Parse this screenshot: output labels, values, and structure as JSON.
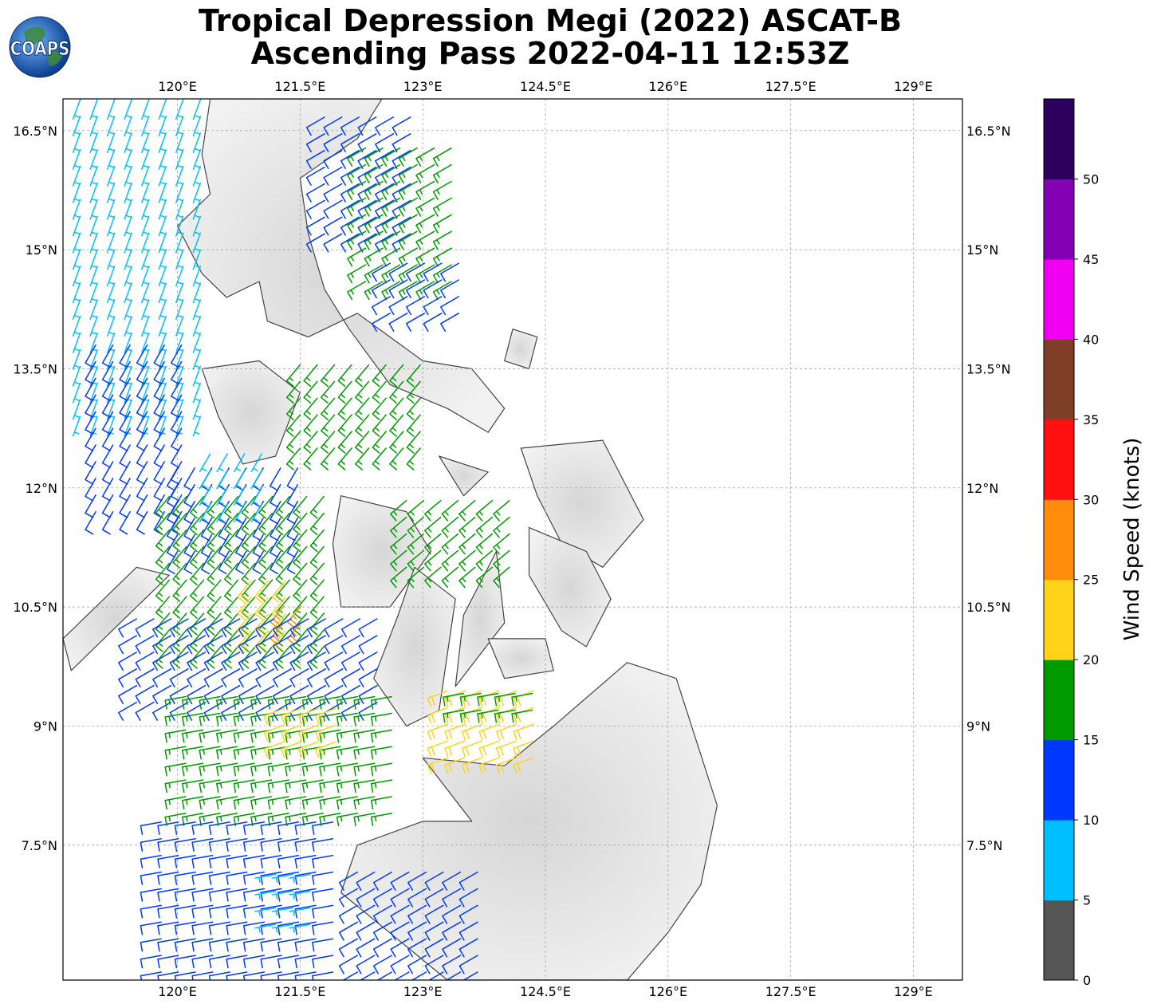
{
  "title": {
    "line1": "Tropical Depression Megi (2022) ASCAT-B",
    "line2": "Ascending Pass 2022-04-11 12:53Z"
  },
  "logo": {
    "text": "COAPS",
    "icon": "globe-icon"
  },
  "map": {
    "lon_range": [
      118.6,
      129.6
    ],
    "lat_range": [
      5.8,
      16.9
    ],
    "lon_ticks": [
      {
        "value": 120.0,
        "label": "120°E"
      },
      {
        "value": 121.5,
        "label": "121.5°E"
      },
      {
        "value": 123.0,
        "label": "123°E"
      },
      {
        "value": 124.5,
        "label": "124.5°E"
      },
      {
        "value": 126.0,
        "label": "126°E"
      },
      {
        "value": 127.5,
        "label": "127.5°E"
      },
      {
        "value": 129.0,
        "label": "129°E"
      }
    ],
    "lat_ticks": [
      {
        "value": 16.5,
        "label": "16.5°N"
      },
      {
        "value": 15.0,
        "label": "15°N"
      },
      {
        "value": 13.5,
        "label": "13.5°N"
      },
      {
        "value": 12.0,
        "label": "12°N"
      },
      {
        "value": 10.5,
        "label": "10.5°N"
      },
      {
        "value": 9.0,
        "label": "9°N"
      },
      {
        "value": 7.5,
        "label": "7.5°N"
      }
    ],
    "gridlines": true,
    "background": "grayscale topography over land"
  },
  "colorbar": {
    "label": "Wind Speed (knots)",
    "bins": [
      {
        "min": 0,
        "max": 5,
        "color": "#555555"
      },
      {
        "min": 5,
        "max": 10,
        "color": "#00bfff"
      },
      {
        "min": 10,
        "max": 15,
        "color": "#0038ff"
      },
      {
        "min": 15,
        "max": 20,
        "color": "#009a00"
      },
      {
        "min": 20,
        "max": 25,
        "color": "#ffd31a"
      },
      {
        "min": 25,
        "max": 30,
        "color": "#ff8c0a"
      },
      {
        "min": 30,
        "max": 35,
        "color": "#ff1010"
      },
      {
        "min": 35,
        "max": 40,
        "color": "#7e3e28"
      },
      {
        "min": 40,
        "max": 45,
        "color": "#f000f0"
      },
      {
        "min": 45,
        "max": 50,
        "color": "#8400b4"
      },
      {
        "min": 50,
        "max": 55,
        "color": "#2e005e"
      }
    ],
    "ticks": [
      "0",
      "5",
      "10",
      "15",
      "20",
      "25",
      "30",
      "35",
      "40",
      "45",
      "50"
    ]
  },
  "wind_regions": [
    {
      "lon": [
        118.6,
        120.4
      ],
      "lat": [
        12.9,
        16.9
      ],
      "speed": 8,
      "dir": 20
    },
    {
      "lon": [
        119.0,
        120.2
      ],
      "lat": [
        11.7,
        14.0
      ],
      "speed": 12,
      "dir": 30
    },
    {
      "lon": [
        121.8,
        123.0
      ],
      "lat": [
        15.2,
        16.7
      ],
      "speed": 12,
      "dir": 60
    },
    {
      "lon": [
        122.3,
        123.5
      ],
      "lat": [
        14.6,
        16.4
      ],
      "speed": 17,
      "dir": 60
    },
    {
      "lon": [
        122.6,
        123.6
      ],
      "lat": [
        14.2,
        15.0
      ],
      "speed": 12,
      "dir": 60
    },
    {
      "lon": [
        121.5,
        123.0
      ],
      "lat": [
        12.5,
        13.7
      ],
      "speed": 17,
      "dir": 40
    },
    {
      "lon": [
        120.0,
        121.5
      ],
      "lat": [
        11.2,
        12.4
      ],
      "speed": 12,
      "dir": 30
    },
    {
      "lon": [
        120.4,
        121.2
      ],
      "lat": [
        11.8,
        12.6
      ],
      "speed": 8,
      "dir": 30
    },
    {
      "lon": [
        119.9,
        121.8
      ],
      "lat": [
        10.0,
        11.9
      ],
      "speed": 17,
      "dir": 40
    },
    {
      "lon": [
        120.9,
        121.5
      ],
      "lat": [
        10.2,
        11.0
      ],
      "speed": 22,
      "dir": 40
    },
    {
      "lon": [
        121.3,
        121.6
      ],
      "lat": [
        10.3,
        10.6
      ],
      "speed": 27,
      "dir": 40
    },
    {
      "lon": [
        122.8,
        124.1
      ],
      "lat": [
        11.0,
        12.0
      ],
      "speed": 17,
      "dir": 50
    },
    {
      "lon": [
        119.5,
        122.6
      ],
      "lat": [
        9.3,
        10.4
      ],
      "speed": 12,
      "dir": 60
    },
    {
      "lon": [
        120.1,
        122.7
      ],
      "lat": [
        7.9,
        9.5
      ],
      "speed": 17,
      "dir": 80
    },
    {
      "lon": [
        121.3,
        122.1
      ],
      "lat": [
        8.8,
        9.4
      ],
      "speed": 22,
      "dir": 70
    },
    {
      "lon": [
        123.3,
        124.5
      ],
      "lat": [
        8.6,
        9.5
      ],
      "speed": 22,
      "dir": 70
    },
    {
      "lon": [
        123.5,
        124.5
      ],
      "lat": [
        9.2,
        9.5
      ],
      "speed": 17,
      "dir": 80
    },
    {
      "lon": [
        119.8,
        122.0
      ],
      "lat": [
        5.9,
        7.9
      ],
      "speed": 12,
      "dir": 80
    },
    {
      "lon": [
        122.2,
        123.8
      ],
      "lat": [
        5.9,
        7.3
      ],
      "speed": 12,
      "dir": 60
    },
    {
      "lon": [
        121.2,
        121.8
      ],
      "lat": [
        6.5,
        7.2
      ],
      "speed": 8,
      "dir": 80
    }
  ],
  "land_shapes": [
    {
      "name": "luzon",
      "points": [
        [
          120.4,
          16.9
        ],
        [
          120.3,
          16.2
        ],
        [
          120.4,
          15.7
        ],
        [
          120.0,
          15.3
        ],
        [
          120.3,
          14.7
        ],
        [
          120.6,
          14.4
        ],
        [
          121.0,
          14.6
        ],
        [
          121.1,
          14.1
        ],
        [
          121.6,
          13.9
        ],
        [
          122.2,
          14.2
        ],
        [
          122.6,
          13.9
        ],
        [
          123.0,
          13.6
        ],
        [
          123.6,
          13.5
        ],
        [
          124.0,
          13.0
        ],
        [
          123.8,
          12.7
        ],
        [
          123.3,
          13.0
        ],
        [
          122.6,
          13.3
        ],
        [
          122.1,
          14.0
        ],
        [
          121.8,
          14.5
        ],
        [
          121.6,
          15.2
        ],
        [
          121.5,
          15.9
        ],
        [
          122.2,
          16.4
        ],
        [
          122.5,
          16.9
        ]
      ]
    },
    {
      "name": "mindoro",
      "points": [
        [
          120.3,
          13.5
        ],
        [
          121.0,
          13.6
        ],
        [
          121.5,
          13.2
        ],
        [
          121.2,
          12.4
        ],
        [
          120.8,
          12.3
        ],
        [
          120.5,
          12.9
        ]
      ]
    },
    {
      "name": "palawan",
      "points": [
        [
          119.5,
          11.0
        ],
        [
          119.9,
          10.9
        ],
        [
          118.7,
          9.7
        ],
        [
          118.6,
          10.1
        ]
      ]
    },
    {
      "name": "panay",
      "points": [
        [
          122.0,
          11.9
        ],
        [
          122.8,
          11.7
        ],
        [
          123.1,
          11.2
        ],
        [
          122.6,
          10.5
        ],
        [
          122.0,
          10.5
        ],
        [
          121.9,
          11.3
        ]
      ]
    },
    {
      "name": "negros",
      "points": [
        [
          122.9,
          11.0
        ],
        [
          123.4,
          10.6
        ],
        [
          123.2,
          9.2
        ],
        [
          122.8,
          9.0
        ],
        [
          122.4,
          9.6
        ],
        [
          122.7,
          10.4
        ]
      ]
    },
    {
      "name": "cebu",
      "points": [
        [
          123.9,
          11.2
        ],
        [
          124.0,
          10.3
        ],
        [
          123.4,
          9.5
        ],
        [
          123.5,
          10.4
        ]
      ]
    },
    {
      "name": "bohol",
      "points": [
        [
          123.8,
          10.1
        ],
        [
          124.5,
          10.1
        ],
        [
          124.6,
          9.7
        ],
        [
          124.0,
          9.6
        ]
      ]
    },
    {
      "name": "samar",
      "points": [
        [
          124.2,
          12.5
        ],
        [
          125.2,
          12.6
        ],
        [
          125.7,
          11.6
        ],
        [
          125.2,
          11.0
        ],
        [
          124.7,
          11.3
        ],
        [
          124.4,
          11.9
        ]
      ]
    },
    {
      "name": "leyte",
      "points": [
        [
          124.3,
          11.5
        ],
        [
          125.0,
          11.2
        ],
        [
          125.3,
          10.6
        ],
        [
          125.0,
          10.0
        ],
        [
          124.7,
          10.2
        ],
        [
          124.3,
          10.9
        ]
      ]
    },
    {
      "name": "mindanao",
      "points": [
        [
          123.0,
          8.6
        ],
        [
          124.0,
          8.5
        ],
        [
          124.6,
          9.0
        ],
        [
          125.5,
          9.8
        ],
        [
          126.1,
          9.6
        ],
        [
          126.6,
          8.0
        ],
        [
          126.4,
          7.0
        ],
        [
          126.0,
          6.4
        ],
        [
          125.5,
          5.8
        ],
        [
          123.3,
          5.8
        ],
        [
          122.0,
          6.9
        ],
        [
          122.2,
          7.5
        ],
        [
          123.0,
          7.8
        ],
        [
          123.6,
          7.8
        ]
      ]
    },
    {
      "name": "masbate",
      "points": [
        [
          123.2,
          12.4
        ],
        [
          123.8,
          12.2
        ],
        [
          123.5,
          11.9
        ]
      ]
    },
    {
      "name": "catanduanes",
      "points": [
        [
          124.1,
          14.0
        ],
        [
          124.4,
          13.9
        ],
        [
          124.3,
          13.5
        ],
        [
          124.0,
          13.6
        ]
      ]
    }
  ]
}
